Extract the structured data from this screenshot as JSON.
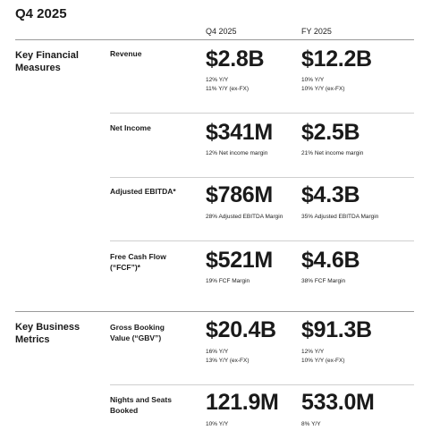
{
  "title": "Q4 2025",
  "columns": {
    "q4": "Q4 2025",
    "fy": "FY 2025"
  },
  "sections": [
    {
      "heading": "Key Financial Measures",
      "rows": [
        {
          "metric": "Revenue",
          "q4": {
            "value": "$2.8B",
            "notes": [
              "12% Y/Y",
              "11% Y/Y (ex-FX)"
            ]
          },
          "fy": {
            "value": "$12.2B",
            "notes": [
              "10% Y/Y",
              "10% Y/Y (ex-FX)"
            ]
          }
        },
        {
          "metric": "Net Income",
          "q4": {
            "value": "$341M",
            "notes": [
              "12% Net income margin"
            ]
          },
          "fy": {
            "value": "$2.5B",
            "notes": [
              "21% Net income margin"
            ]
          }
        },
        {
          "metric": "Adjusted EBITDA*",
          "q4": {
            "value": "$786M",
            "notes": [
              "28% Adjusted EBITDA Margin"
            ]
          },
          "fy": {
            "value": "$4.3B",
            "notes": [
              "35% Adjusted EBITDA Margin"
            ]
          }
        },
        {
          "metric": "Free Cash Flow (“FCF”)*",
          "q4": {
            "value": "$521M",
            "notes": [
              "19% FCF Margin"
            ]
          },
          "fy": {
            "value": "$4.6B",
            "notes": [
              "38% FCF Margin"
            ]
          }
        }
      ]
    },
    {
      "heading": "Key Business Metrics",
      "rows": [
        {
          "metric": "Gross Booking Value (“GBV”)",
          "q4": {
            "value": "$20.4B",
            "notes": [
              "16% Y/Y",
              "13% Y/Y (ex-FX)"
            ]
          },
          "fy": {
            "value": "$91.3B",
            "notes": [
              "12% Y/Y",
              "10% Y/Y (ex-FX)"
            ]
          }
        },
        {
          "metric": "Nights and Seats Booked",
          "q4": {
            "value": "121.9M",
            "notes": [
              "10% Y/Y"
            ]
          },
          "fy": {
            "value": "533.0M",
            "notes": [
              "8% Y/Y"
            ]
          }
        }
      ]
    }
  ]
}
